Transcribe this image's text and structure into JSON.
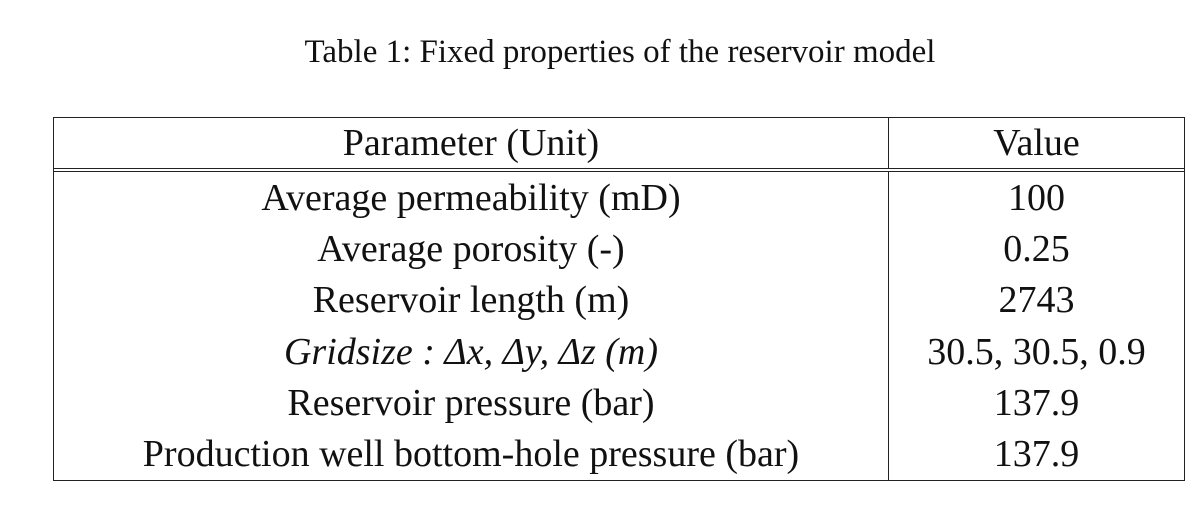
{
  "header": {
    "title": "Table 1: Fixed properties of the reservoir model"
  },
  "table": {
    "columns": [
      "Parameter (Unit)",
      "Value"
    ],
    "rows": [
      [
        "Average permeability (mD)",
        "100"
      ],
      [
        "Average porosity (-)",
        "0.25"
      ],
      [
        "Reservoir length (m)",
        "2743"
      ],
      [
        "Gridsize : Δx, Δy, Δz (m)",
        "30.5, 30.5, 0.9"
      ],
      [
        "Reservoir pressure (bar)",
        "137.9"
      ],
      [
        "Production well bottom-hole pressure (bar)",
        "137.9"
      ]
    ]
  }
}
